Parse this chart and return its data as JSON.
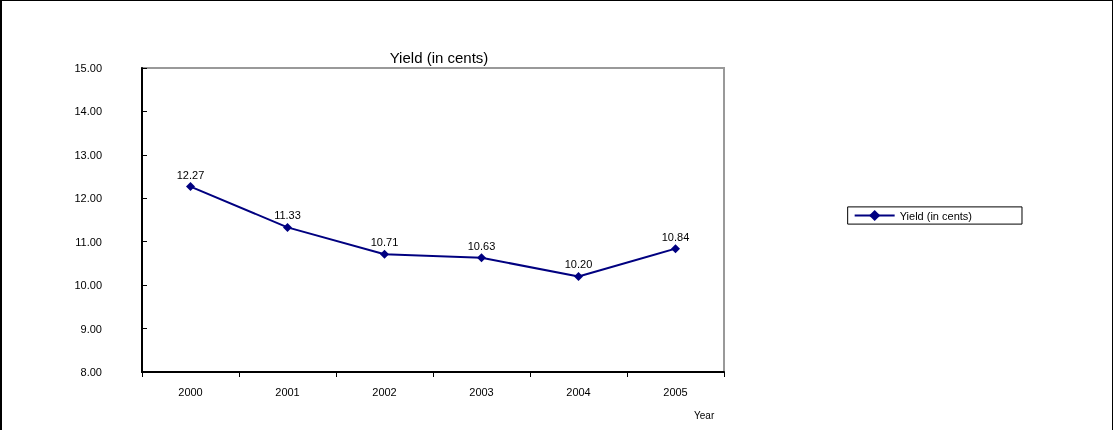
{
  "chart_data": {
    "type": "line",
    "title": "Yield (in cents)",
    "xlabel": "Year",
    "categories": [
      "2000",
      "2001",
      "2002",
      "2003",
      "2004",
      "2005"
    ],
    "series": [
      {
        "name": "Yield (in cents)",
        "color": "#000080",
        "values": [
          12.27,
          11.33,
          10.71,
          10.63,
          10.2,
          10.84
        ],
        "value_labels": [
          "12.27",
          "11.33",
          "10.71",
          "10.63",
          "10.20",
          "10.84"
        ]
      }
    ],
    "ylim": [
      8,
      15
    ],
    "yticks": [
      {
        "value": 8,
        "label": "8.00"
      },
      {
        "value": 9,
        "label": "9.00"
      },
      {
        "value": 10,
        "label": "10.00"
      },
      {
        "value": 11,
        "label": "11.00"
      },
      {
        "value": 12,
        "label": "12.00"
      },
      {
        "value": 13,
        "label": "13.00"
      },
      {
        "value": 14,
        "label": "14.00"
      },
      {
        "value": 15,
        "label": "15.00"
      }
    ],
    "grid": false,
    "legend": "right",
    "marker": "diamond",
    "line_style": "solid"
  }
}
